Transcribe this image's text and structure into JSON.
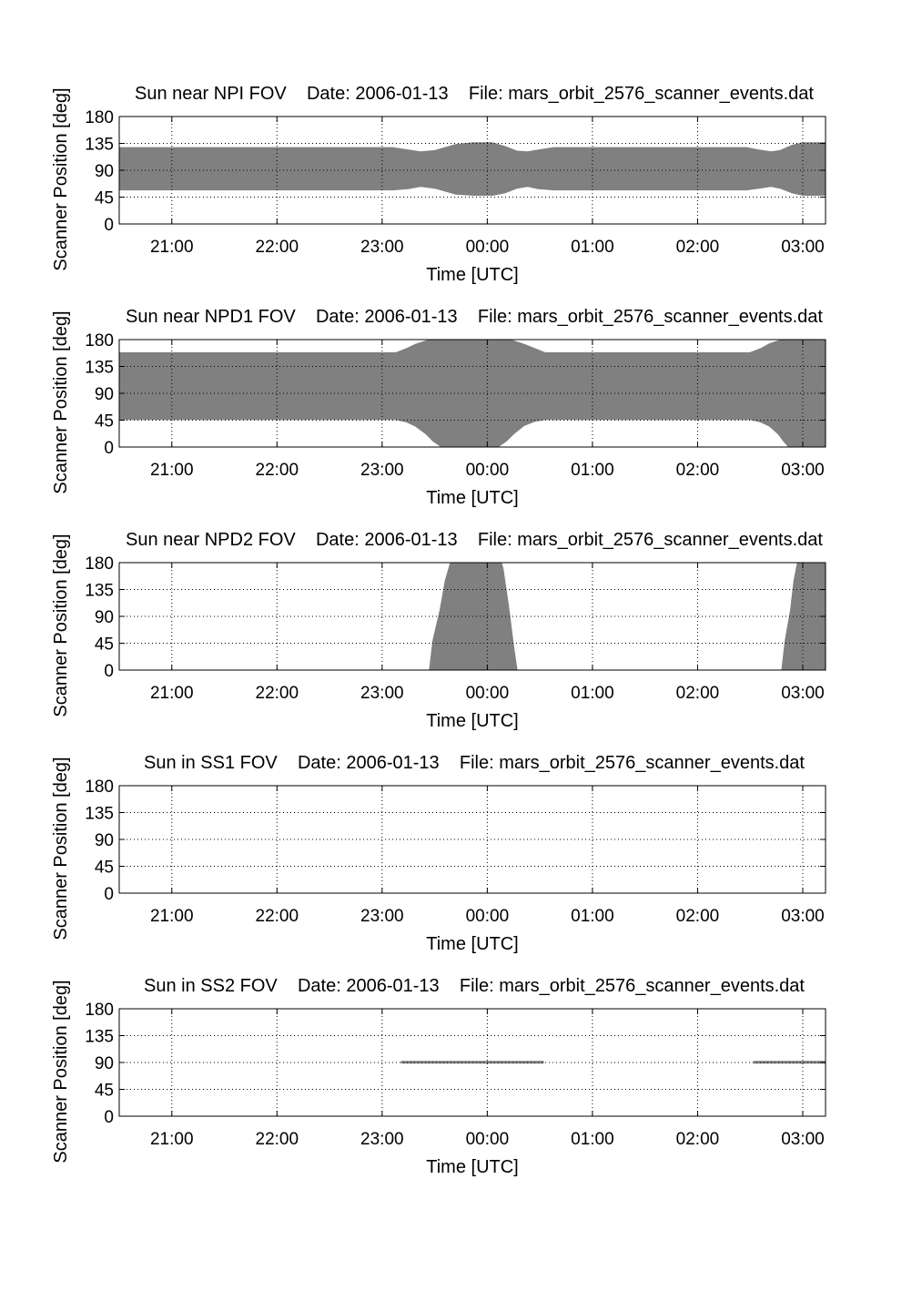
{
  "chart_data": [
    {
      "type": "area",
      "title": "Sun near NPI FOV    Date: 2006-01-13    File: mars_orbit_2576_scanner_events.dat",
      "xlabel": "Time [UTC]",
      "ylabel": "Scanner Position [deg]",
      "xlim": [
        "20:30",
        "03:13"
      ],
      "ylim": [
        0,
        180
      ],
      "xticks": [
        "21:00",
        "22:00",
        "23:00",
        "00:00",
        "01:00",
        "02:00",
        "03:00"
      ],
      "yticks": [
        "0",
        "45",
        "90",
        "135",
        "180"
      ],
      "grid": true,
      "fill_color": "#808080",
      "series": [
        {
          "time": [
            "20:30",
            "23:06",
            "23:15",
            "23:22",
            "23:30",
            "23:42",
            "23:52",
            "00:03",
            "00:10",
            "00:17",
            "00:23",
            "00:29",
            "00:38",
            "02:28",
            "02:35",
            "02:42",
            "02:47",
            "02:54",
            "03:00",
            "03:13"
          ],
          "lower": [
            57,
            57,
            59,
            63,
            60,
            50,
            48,
            48,
            52,
            60,
            63,
            59,
            57,
            57,
            60,
            63,
            60,
            52,
            48,
            48
          ],
          "upper": [
            128,
            128,
            124,
            121,
            123,
            133,
            136,
            136,
            130,
            122,
            121,
            124,
            128,
            128,
            124,
            121,
            123,
            132,
            136,
            136
          ]
        }
      ]
    },
    {
      "type": "area",
      "title": "Sun near NPD1 FOV    Date: 2006-01-13    File: mars_orbit_2576_scanner_events.dat",
      "xlabel": "Time [UTC]",
      "ylabel": "Scanner Position [deg]",
      "xlim": [
        "20:30",
        "03:13"
      ],
      "ylim": [
        0,
        180
      ],
      "xticks": [
        "21:00",
        "22:00",
        "23:00",
        "00:00",
        "01:00",
        "02:00",
        "03:00"
      ],
      "yticks": [
        "0",
        "45",
        "90",
        "135",
        "180"
      ],
      "grid": true,
      "fill_color": "#808080",
      "series": [
        {
          "time": [
            "20:30",
            "23:08",
            "23:14",
            "23:19",
            "23:25",
            "23:29",
            "23:34",
            "00:06",
            "00:11",
            "00:15",
            "00:21",
            "00:27",
            "00:33",
            "02:30",
            "02:36",
            "02:41",
            "02:46",
            "02:49",
            "02:52",
            "03:13"
          ],
          "lower": [
            46,
            46,
            42,
            35,
            22,
            10,
            0,
            0,
            10,
            22,
            36,
            43,
            46,
            46,
            42,
            35,
            22,
            10,
            0,
            0
          ],
          "upper": [
            158,
            158,
            165,
            172,
            178,
            180,
            180,
            180,
            180,
            178,
            172,
            165,
            158,
            158,
            165,
            173,
            178,
            180,
            180,
            180
          ]
        }
      ]
    },
    {
      "type": "area",
      "title": "Sun near NPD2 FOV    Date: 2006-01-13    File: mars_orbit_2576_scanner_events.dat",
      "xlabel": "Time [UTC]",
      "ylabel": "Scanner Position [deg]",
      "xlim": [
        "20:30",
        "03:13"
      ],
      "ylim": [
        0,
        180
      ],
      "xticks": [
        "21:00",
        "22:00",
        "23:00",
        "00:00",
        "01:00",
        "02:00",
        "03:00"
      ],
      "yticks": [
        "0",
        "45",
        "90",
        "135",
        "180"
      ],
      "grid": true,
      "fill_color": "#808080",
      "series": [
        {
          "time": [
            "23:27",
            "23:29",
            "23:33",
            "23:36",
            "23:39",
            "23:40"
          ],
          "lower": [
            0,
            0,
            0,
            0,
            0,
            0
          ],
          "upper": [
            0,
            50,
            100,
            150,
            180,
            180
          ]
        },
        {
          "time": [
            "23:40",
            "00:08",
            "00:09",
            "00:12",
            "00:15",
            "00:17"
          ],
          "lower": [
            0,
            0,
            0,
            0,
            0,
            0
          ],
          "upper": [
            180,
            180,
            170,
            110,
            40,
            0
          ]
        },
        {
          "time": [
            "02:48",
            "02:50",
            "02:53",
            "02:55",
            "02:57",
            "03:13"
          ],
          "lower": [
            0,
            0,
            0,
            0,
            0,
            0
          ],
          "upper": [
            0,
            50,
            100,
            150,
            180,
            180
          ]
        }
      ]
    },
    {
      "type": "area",
      "title": "Sun in SS1 FOV    Date: 2006-01-13    File: mars_orbit_2576_scanner_events.dat",
      "xlabel": "Time [UTC]",
      "ylabel": "Scanner Position [deg]",
      "xlim": [
        "20:30",
        "03:13"
      ],
      "ylim": [
        0,
        180
      ],
      "xticks": [
        "21:00",
        "22:00",
        "23:00",
        "00:00",
        "01:00",
        "02:00",
        "03:00"
      ],
      "yticks": [
        "0",
        "45",
        "90",
        "135",
        "180"
      ],
      "grid": true,
      "fill_color": "#808080",
      "series": []
    },
    {
      "type": "area",
      "title": "Sun in SS2 FOV    Date: 2006-01-13    File: mars_orbit_2576_scanner_events.dat",
      "xlabel": "Time [UTC]",
      "ylabel": "Scanner Position [deg]",
      "xlim": [
        "20:30",
        "03:13"
      ],
      "ylim": [
        0,
        180
      ],
      "xticks": [
        "21:00",
        "22:00",
        "23:00",
        "00:00",
        "01:00",
        "02:00",
        "03:00"
      ],
      "yticks": [
        "0",
        "45",
        "90",
        "135",
        "180"
      ],
      "grid": true,
      "fill_color": "#808080",
      "series": [
        {
          "time": [
            "23:11",
            "00:32"
          ],
          "lower": [
            89,
            89
          ],
          "upper": [
            92,
            92
          ]
        },
        {
          "time": [
            "02:32",
            "03:13"
          ],
          "lower": [
            89,
            89
          ],
          "upper": [
            92,
            92
          ]
        }
      ]
    }
  ]
}
